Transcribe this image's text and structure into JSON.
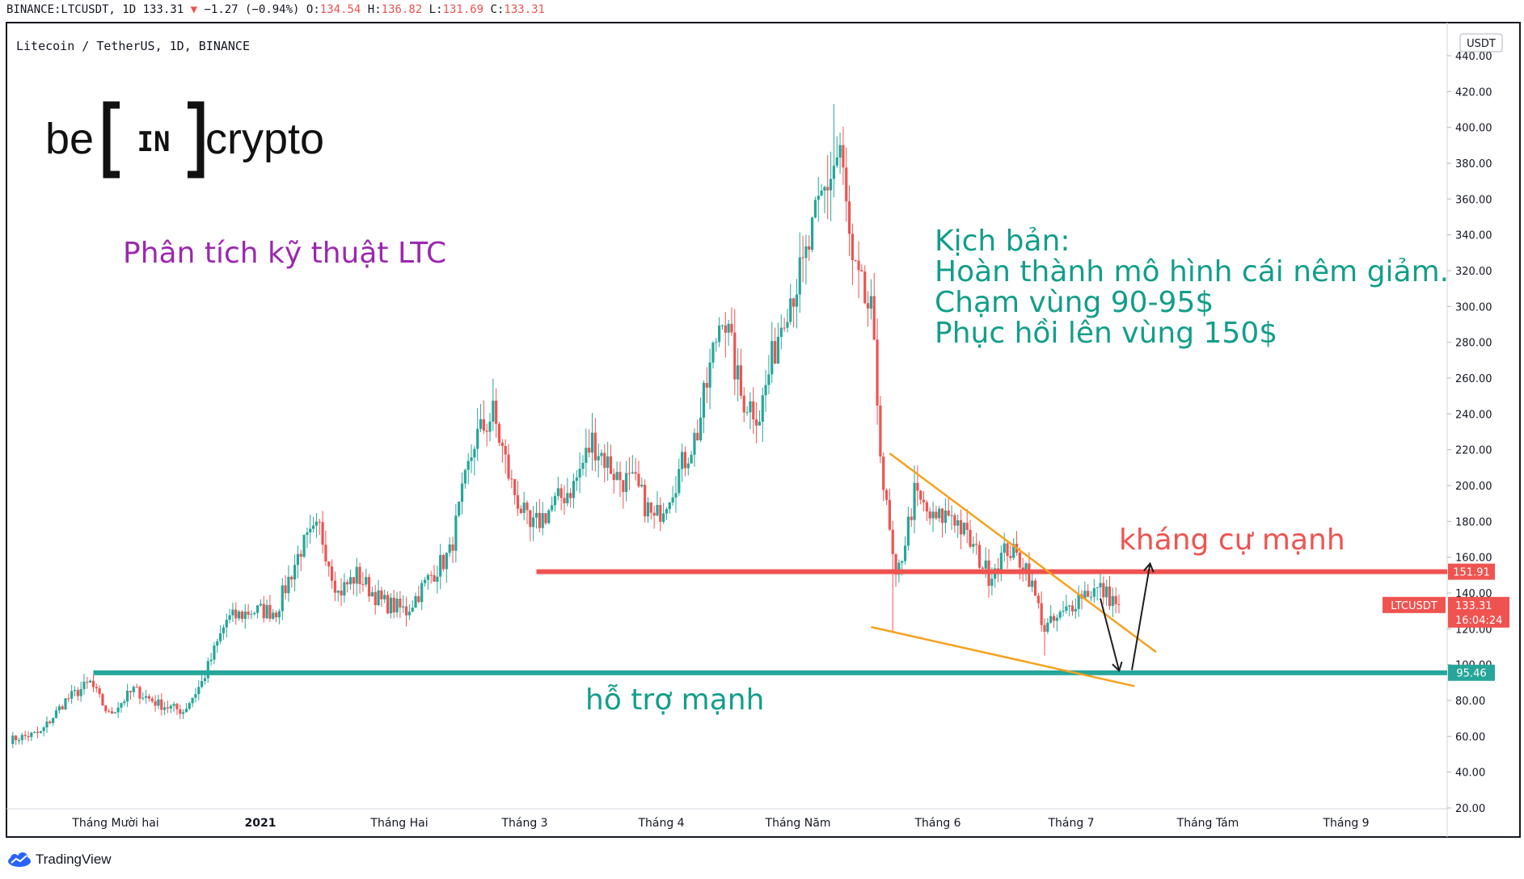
{
  "header": {
    "symbol": "BINANCE:LTCUSDT, 1D 133.31",
    "arrow": "▼",
    "change": "−1.27 (−0.94%)",
    "o_label": "O:",
    "o_value": "134.54",
    "h_label": "H:",
    "h_value": "136.82",
    "l_label": "L:",
    "l_value": "131.69",
    "c_label": "C:",
    "c_value": "133.31"
  },
  "chart_title": "Litecoin / TetherUS, 1D, BINANCE",
  "logo": {
    "left": "be",
    "middle": "IN",
    "right": "crypto"
  },
  "annotations": {
    "analysis_title": "Phân tích kỹ thuật LTC",
    "scenario": [
      "Kịch bản:",
      "Hoàn thành mô hình cái nêm giảm.",
      "Chạm vùng 90-95$",
      "Phục hồi lên vùng 150$"
    ],
    "resistance_label": "kháng cự mạnh",
    "support_label": "hỗ trợ mạnh"
  },
  "price_axis": {
    "unit": "USDT",
    "ticks": [
      "20.00",
      "40.00",
      "60.00",
      "80.00",
      "100.00",
      "120.00",
      "140.00",
      "160.00",
      "180.00",
      "200.00",
      "220.00",
      "240.00",
      "260.00",
      "280.00",
      "300.00",
      "320.00",
      "340.00",
      "360.00",
      "380.00",
      "400.00",
      "420.00",
      "440.00"
    ],
    "resistance_badge": "151.91",
    "support_badge": "95.46",
    "symbol_badge": "LTCUSDT",
    "price_badge": "133.31",
    "countdown_badge": "16:04:24"
  },
  "time_axis": [
    "Tháng Mười hai",
    "2021",
    "Tháng Hai",
    "Tháng 3",
    "Tháng 4",
    "Tháng Năm",
    "Tháng 6",
    "Tháng 7",
    "Tháng Tám",
    "Tháng 9"
  ],
  "footer": {
    "brand": "TradingView"
  },
  "colors": {
    "up": "#26a69a",
    "down": "#ef5350",
    "resistance": "#ef5350",
    "support": "#26a69a",
    "wedge": "#f7a21b",
    "annotation_purple": "#9c27b0",
    "annotation_teal": "#129e8a",
    "annotation_red": "#ef5350"
  },
  "chart_data": {
    "type": "candlestick",
    "series_label": "LTCUSDT",
    "ylim": [
      20,
      440
    ],
    "resistance_level": 151.91,
    "support_level": 95.46,
    "last_price": 133.31,
    "close_anchors": [
      [
        0,
        58
      ],
      [
        10,
        62
      ],
      [
        18,
        80
      ],
      [
        26,
        90
      ],
      [
        32,
        72
      ],
      [
        40,
        86
      ],
      [
        48,
        78
      ],
      [
        56,
        74
      ],
      [
        62,
        90
      ],
      [
        70,
        125
      ],
      [
        78,
        130
      ],
      [
        86,
        130
      ],
      [
        94,
        165
      ],
      [
        100,
        176
      ],
      [
        106,
        140
      ],
      [
        112,
        150
      ],
      [
        120,
        135
      ],
      [
        128,
        130
      ],
      [
        136,
        150
      ],
      [
        142,
        162
      ],
      [
        150,
        225
      ],
      [
        156,
        240
      ],
      [
        162,
        200
      ],
      [
        168,
        175
      ],
      [
        176,
        190
      ],
      [
        182,
        200
      ],
      [
        188,
        225
      ],
      [
        196,
        205
      ],
      [
        202,
        200
      ],
      [
        208,
        180
      ],
      [
        214,
        200
      ],
      [
        222,
        230
      ],
      [
        230,
        300
      ],
      [
        236,
        250
      ],
      [
        242,
        240
      ],
      [
        250,
        300
      ],
      [
        256,
        320
      ],
      [
        262,
        360
      ],
      [
        268,
        388
      ],
      [
        272,
        320
      ],
      [
        278,
        295
      ],
      [
        282,
        200
      ],
      [
        286,
        145
      ],
      [
        292,
        195
      ],
      [
        298,
        180
      ],
      [
        304,
        185
      ],
      [
        310,
        168
      ],
      [
        316,
        150
      ],
      [
        322,
        165
      ],
      [
        328,
        155
      ],
      [
        334,
        120
      ],
      [
        340,
        128
      ],
      [
        346,
        140
      ],
      [
        352,
        142
      ],
      [
        358,
        133.31
      ]
    ],
    "wicks": [
      [
        285,
        118
      ],
      [
        334,
        105
      ],
      [
        266,
        413
      ]
    ],
    "wedge_upper": [
      [
        284,
        218
      ],
      [
        370,
        107
      ]
    ],
    "wedge_lower": [
      [
        278,
        121
      ],
      [
        363,
        88
      ]
    ],
    "projection": [
      [
        352,
        137
      ],
      [
        358,
        97
      ],
      [
        368,
        156
      ]
    ]
  }
}
